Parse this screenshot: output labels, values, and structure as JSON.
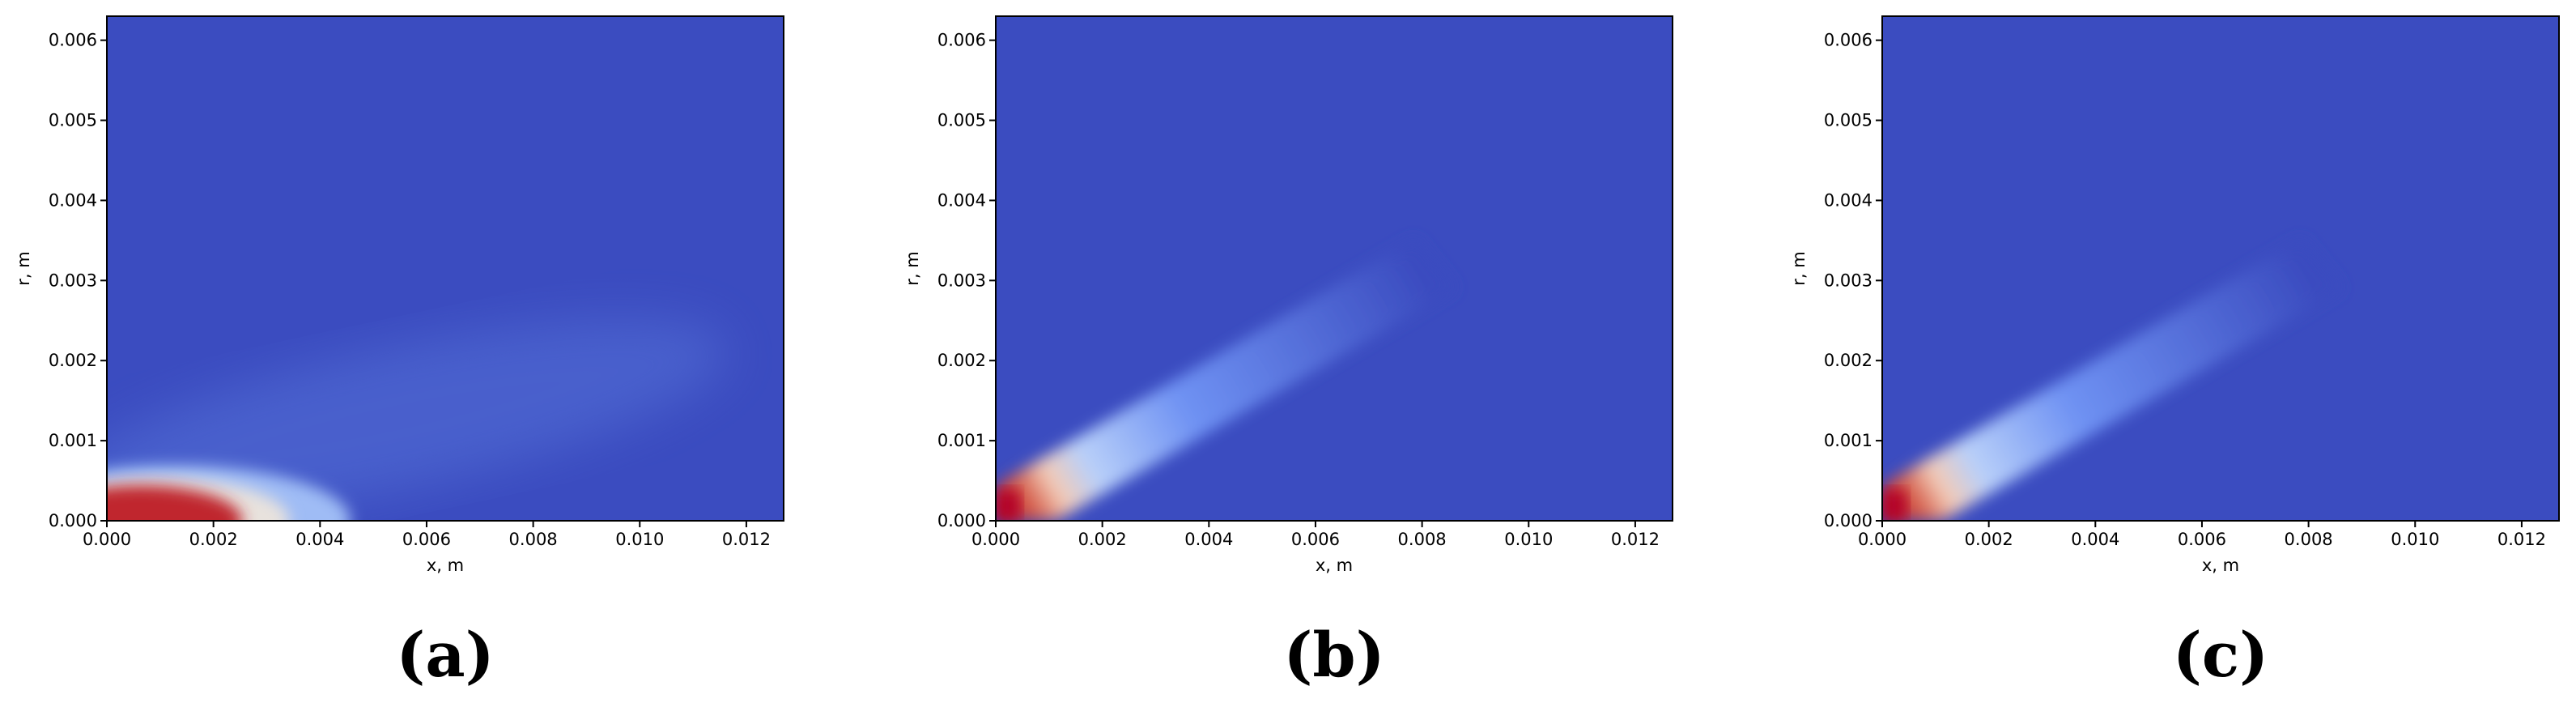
{
  "chart_data": [
    {
      "type": "heatmap",
      "caption": "(a)",
      "xlabel": "x, m",
      "ylabel": "r, m",
      "xlim": [
        0,
        0.0127
      ],
      "ylim": [
        0,
        0.0063
      ],
      "xticks": [
        {
          "value": 0,
          "label": "0.000"
        },
        {
          "value": 0.002,
          "label": "0.002"
        },
        {
          "value": 0.004,
          "label": "0.004"
        },
        {
          "value": 0.006,
          "label": "0.006"
        },
        {
          "value": 0.008,
          "label": "0.008"
        },
        {
          "value": 0.01,
          "label": "0.010"
        },
        {
          "value": 0.012,
          "label": "0.012"
        }
      ],
      "yticks": [
        {
          "value": 0,
          "label": "0.000"
        },
        {
          "value": 0.001,
          "label": "0.001"
        },
        {
          "value": 0.002,
          "label": "0.002"
        },
        {
          "value": 0.003,
          "label": "0.003"
        },
        {
          "value": 0.004,
          "label": "0.004"
        },
        {
          "value": 0.005,
          "label": "0.005"
        },
        {
          "value": 0.006,
          "label": "0.006"
        }
      ]
    },
    {
      "type": "heatmap",
      "caption": "(b)",
      "xlabel": "x, m",
      "ylabel": "r, m",
      "xlim": [
        0,
        0.0127
      ],
      "ylim": [
        0,
        0.0063
      ],
      "xticks": [
        {
          "value": 0,
          "label": "0.000"
        },
        {
          "value": 0.002,
          "label": "0.002"
        },
        {
          "value": 0.004,
          "label": "0.004"
        },
        {
          "value": 0.006,
          "label": "0.006"
        },
        {
          "value": 0.008,
          "label": "0.008"
        },
        {
          "value": 0.01,
          "label": "0.010"
        },
        {
          "value": 0.012,
          "label": "0.012"
        }
      ],
      "yticks": [
        {
          "value": 0,
          "label": "0.000"
        },
        {
          "value": 0.001,
          "label": "0.001"
        },
        {
          "value": 0.002,
          "label": "0.002"
        },
        {
          "value": 0.003,
          "label": "0.003"
        },
        {
          "value": 0.004,
          "label": "0.004"
        },
        {
          "value": 0.005,
          "label": "0.005"
        },
        {
          "value": 0.006,
          "label": "0.006"
        }
      ]
    },
    {
      "type": "heatmap",
      "caption": "(c)",
      "xlabel": "x, m",
      "ylabel": "r, m",
      "xlim": [
        0,
        0.0127
      ],
      "ylim": [
        0,
        0.0063
      ],
      "xticks": [
        {
          "value": 0,
          "label": "0.000"
        },
        {
          "value": 0.002,
          "label": "0.002"
        },
        {
          "value": 0.004,
          "label": "0.004"
        },
        {
          "value": 0.006,
          "label": "0.006"
        },
        {
          "value": 0.008,
          "label": "0.008"
        },
        {
          "value": 0.01,
          "label": "0.010"
        },
        {
          "value": 0.012,
          "label": "0.012"
        }
      ],
      "yticks": [
        {
          "value": 0,
          "label": "0.000"
        },
        {
          "value": 0.001,
          "label": "0.001"
        },
        {
          "value": 0.002,
          "label": "0.002"
        },
        {
          "value": 0.003,
          "label": "0.003"
        },
        {
          "value": 0.004,
          "label": "0.004"
        },
        {
          "value": 0.005,
          "label": "0.005"
        },
        {
          "value": 0.006,
          "label": "0.006"
        }
      ]
    }
  ]
}
